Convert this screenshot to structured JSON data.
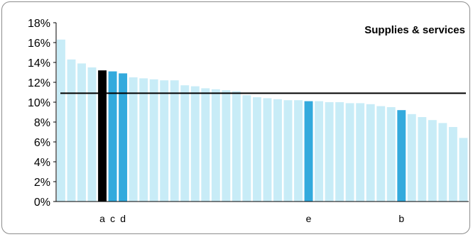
{
  "chart_data": {
    "type": "bar",
    "title": "Supplies & services",
    "ylim": [
      0,
      18
    ],
    "y_ticks": [
      "0%",
      "2%",
      "4%",
      "6%",
      "8%",
      "10%",
      "12%",
      "14%",
      "16%",
      "18%"
    ],
    "reference_line": 10.9,
    "grid": false,
    "values": [
      16.3,
      14.3,
      13.9,
      13.5,
      13.2,
      13.1,
      12.9,
      12.5,
      12.4,
      12.3,
      12.2,
      12.2,
      11.7,
      11.6,
      11.4,
      11.3,
      11.2,
      11.1,
      10.7,
      10.5,
      10.4,
      10.3,
      10.2,
      10.2,
      10.1,
      10.1,
      10.0,
      10.0,
      9.9,
      9.9,
      9.8,
      9.6,
      9.5,
      9.2,
      8.8,
      8.5,
      8.2,
      7.9,
      7.5,
      6.4
    ],
    "highlighted": [
      {
        "label": "a",
        "index": 4,
        "color": "#000000"
      },
      {
        "label": "c",
        "index": 5,
        "color": "#33aadd"
      },
      {
        "label": "d",
        "index": 6,
        "color": "#33aadd"
      },
      {
        "label": "e",
        "index": 24,
        "color": "#33aadd"
      },
      {
        "label": "b",
        "index": 33,
        "color": "#33aadd"
      }
    ],
    "colors": {
      "bar": "#c8ecf7",
      "axis": "#000000",
      "reference_line": "#000000"
    }
  }
}
